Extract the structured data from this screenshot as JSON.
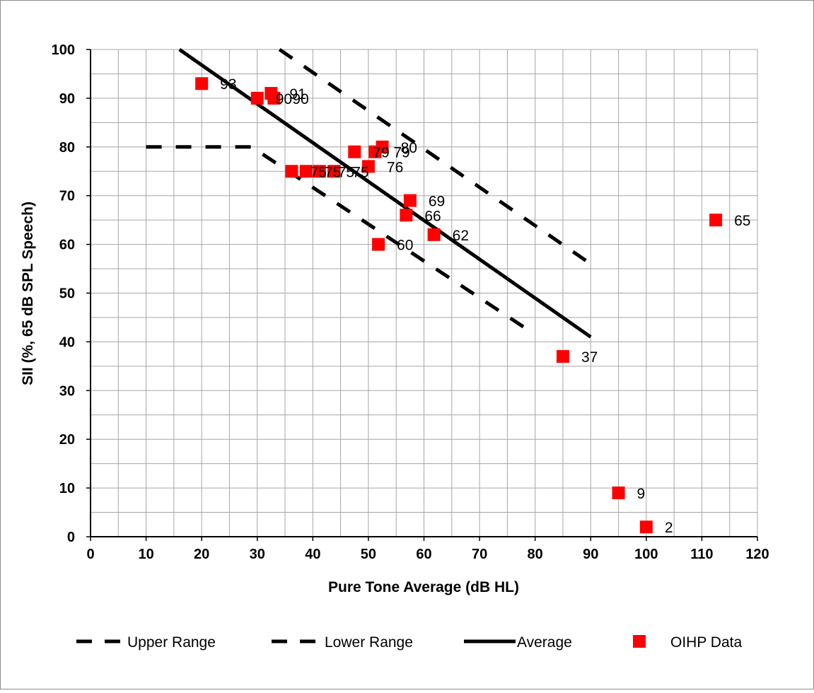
{
  "chart_data": {
    "type": "scatter",
    "xlabel": "Pure Tone Average (dB HL)",
    "ylabel": "SII (%, 65 dB SPL Speech)",
    "xlim": [
      0,
      120
    ],
    "ylim": [
      0,
      100
    ],
    "x_ticks": [
      0,
      10,
      20,
      30,
      40,
      50,
      60,
      70,
      80,
      90,
      100,
      110,
      120
    ],
    "y_ticks": [
      0,
      10,
      20,
      30,
      40,
      50,
      60,
      70,
      80,
      90,
      100
    ],
    "grid": true,
    "legend_position": "bottom",
    "series": [
      {
        "name": "Upper Range",
        "style": "dashed",
        "color": "#000000",
        "points": [
          [
            34,
            100
          ],
          [
            90,
            56
          ]
        ]
      },
      {
        "name": "Lower Range",
        "style": "dashed",
        "color": "#000000",
        "points": [
          [
            10,
            80
          ],
          [
            29,
            80
          ],
          [
            78,
            43
          ]
        ]
      },
      {
        "name": "Average",
        "style": "solid",
        "color": "#000000",
        "points": [
          [
            16,
            100
          ],
          [
            90,
            41
          ]
        ]
      },
      {
        "name": "OIHP Data",
        "style": "markers",
        "color": "#ff0000",
        "points": [
          {
            "x": 20,
            "y": 93,
            "label": "93"
          },
          {
            "x": 30,
            "y": 90,
            "label": "90"
          },
          {
            "x": 32.5,
            "y": 91,
            "label": "91"
          },
          {
            "x": 33,
            "y": 90,
            "label": "90"
          },
          {
            "x": 36.2,
            "y": 75,
            "label": "75"
          },
          {
            "x": 38.8,
            "y": 75,
            "label": "75"
          },
          {
            "x": 41.2,
            "y": 75,
            "label": "75"
          },
          {
            "x": 43.8,
            "y": 75,
            "label": "75"
          },
          {
            "x": 47.5,
            "y": 79,
            "label": "79"
          },
          {
            "x": 50,
            "y": 76,
            "label": "76"
          },
          {
            "x": 51.2,
            "y": 79,
            "label": "79"
          },
          {
            "x": 52.5,
            "y": 80,
            "label": "80"
          },
          {
            "x": 51.8,
            "y": 60,
            "label": "60"
          },
          {
            "x": 56.8,
            "y": 66,
            "label": "66"
          },
          {
            "x": 57.5,
            "y": 69,
            "label": "69"
          },
          {
            "x": 61.8,
            "y": 62,
            "label": "62"
          },
          {
            "x": 85,
            "y": 37,
            "label": "37"
          },
          {
            "x": 95,
            "y": 9,
            "label": "9"
          },
          {
            "x": 100,
            "y": 2,
            "label": "2"
          },
          {
            "x": 112.5,
            "y": 65,
            "label": "65"
          }
        ]
      }
    ]
  }
}
